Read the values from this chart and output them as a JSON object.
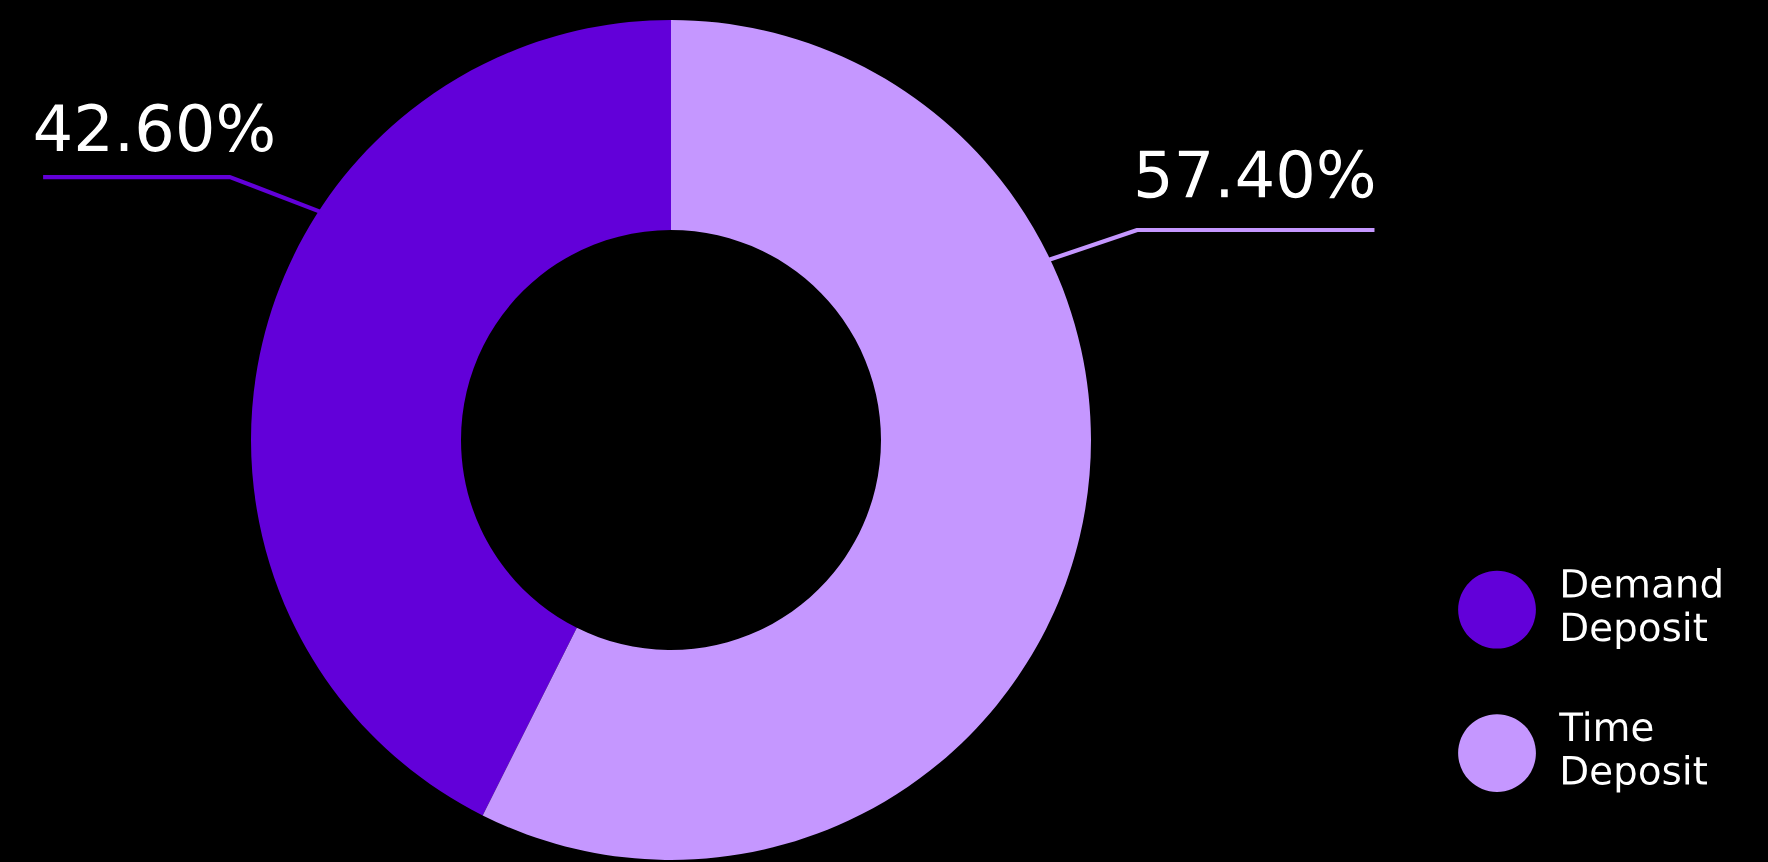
{
  "chart_data": {
    "type": "donut",
    "categories": [
      "Demand\nDeposit",
      "Time\nDeposit"
    ],
    "values": [
      42.6,
      57.4
    ],
    "colors": [
      "#6200d9",
      "#c597ff"
    ],
    "value_labels": [
      "42.60%",
      "57.40%"
    ],
    "legend": "bottom right"
  }
}
